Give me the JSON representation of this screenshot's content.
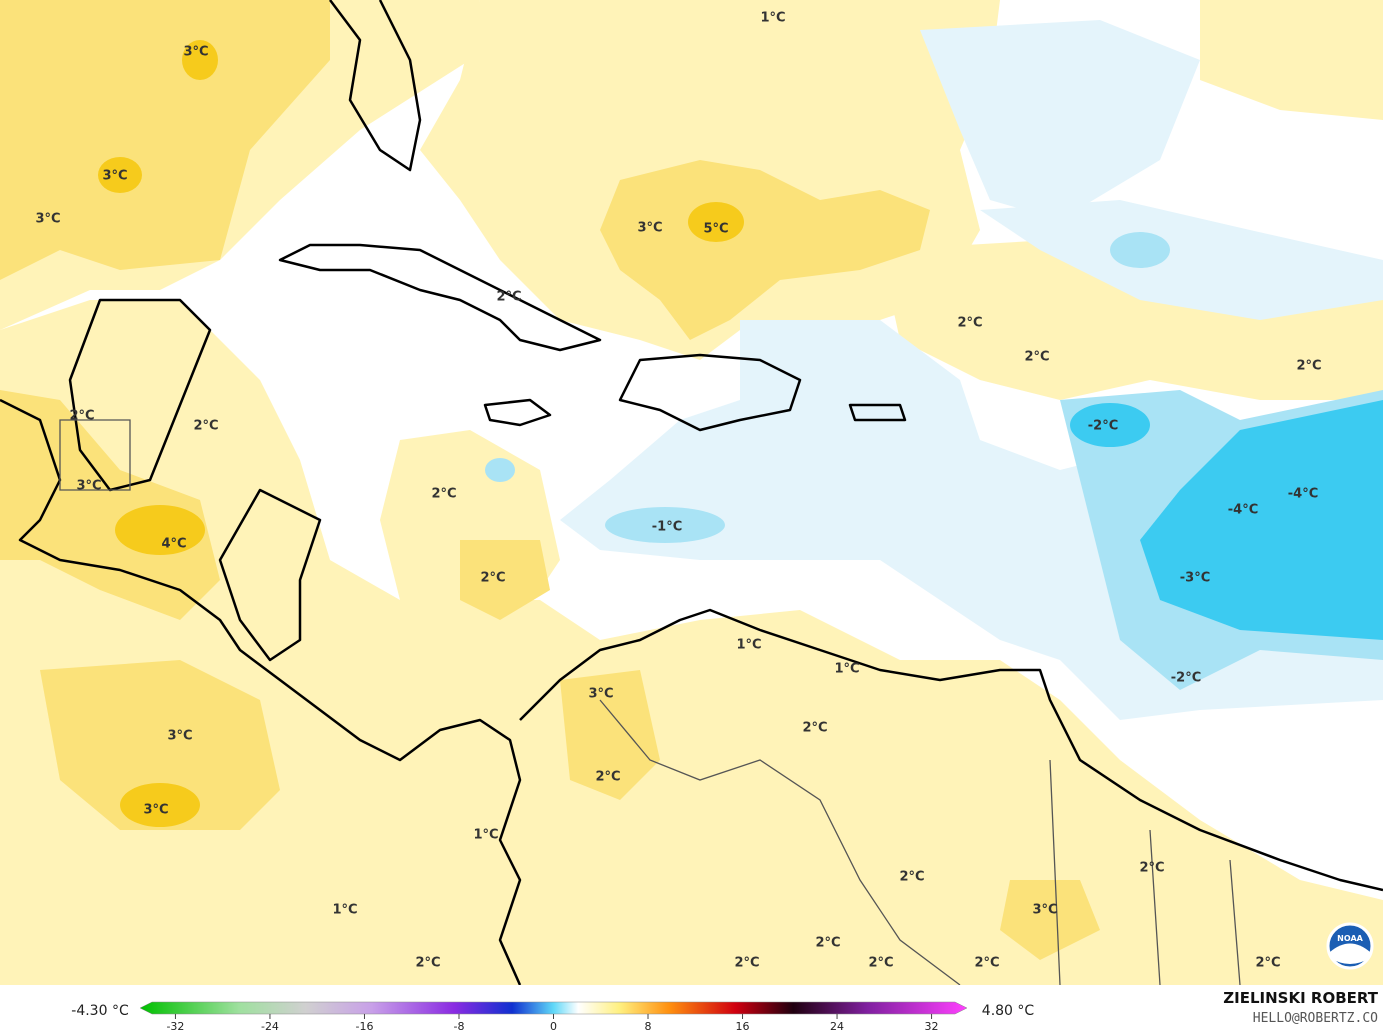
{
  "map": {
    "contour_labels": [
      "1°C",
      "3°C",
      "3°C",
      "3°C",
      "3°C",
      "5°C",
      "2°C",
      "2°C",
      "2°C",
      "2°C",
      "2°C",
      "2°C",
      "-2°C",
      "3°C",
      "2°C",
      "-4°C",
      "-4°C",
      "-1°C",
      "4°C",
      "2°C",
      "-3°C",
      "1°C",
      "1°C",
      "-2°C",
      "3°C",
      "2°C",
      "3°C",
      "2°C",
      "3°C",
      "1°C",
      "2°C",
      "2°C",
      "3°C",
      "1°C",
      "2°C",
      "2°C",
      "2°C",
      "2°C",
      "2°C",
      "2°C"
    ],
    "logo_text": "NOAA"
  },
  "colorbar": {
    "min_label": "-4.30 °C",
    "max_label": "4.80 °C",
    "lim": [
      -35,
      35
    ],
    "ticks": [
      -32,
      -24,
      -16,
      -8,
      0,
      8,
      16,
      24,
      32
    ]
  },
  "credits": {
    "name": "ZIELINSKI ROBERT",
    "contact": "HELLO@ROBERTZ.CO"
  }
}
